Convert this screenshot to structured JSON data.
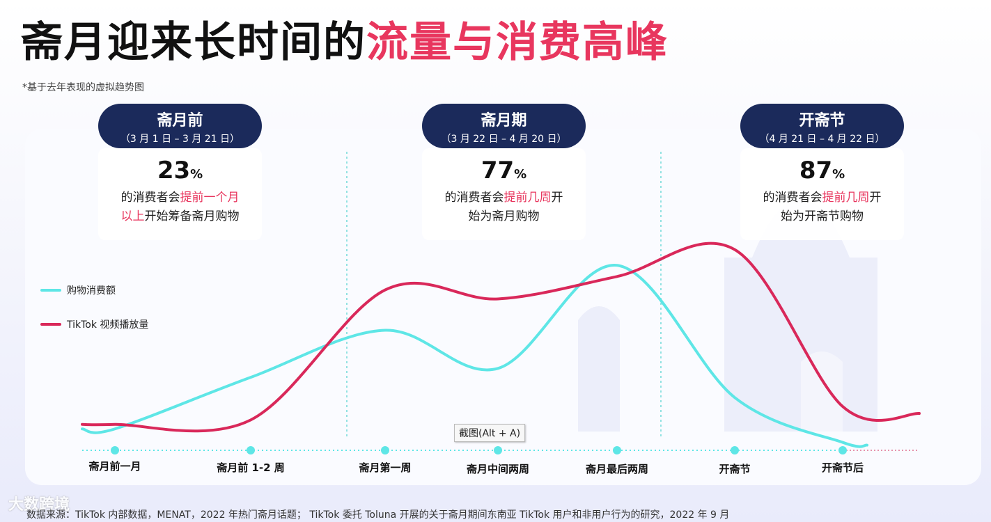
{
  "title": {
    "part1": "斋月迎来长时间的",
    "part2": "流量与消费高峰"
  },
  "note": "*基于去年表现的虚拟趋势图",
  "stages": [
    {
      "name": "斋月前",
      "dates": "（3 月 1 日 – 3 月 21 日）",
      "percent": "23",
      "percent_sign": "%",
      "desc_pre": "的消费者会",
      "desc_hl": "提前一个月\n以上",
      "desc_post": "开始筹备斋月购物"
    },
    {
      "name": "斋月期",
      "dates": "（3 月 22 日 – 4 月 20 日）",
      "percent": "77",
      "percent_sign": "%",
      "desc_pre": "的消费者会",
      "desc_hl": "提前几周",
      "desc_post": "开\n始为斋月购物"
    },
    {
      "name": "开斋节",
      "dates": "（4 月 21 日 – 4 月 22 日）",
      "percent": "87",
      "percent_sign": "%",
      "desc_pre": "的消费者会",
      "desc_hl": "提前几周",
      "desc_post": "开\n始为开斋节购物"
    }
  ],
  "tooltip": "截图(Alt + A)",
  "source": "数据来源：TikTok 内部数据，MENAT，2022 年热门斋月话题； TikTok 委托 Toluna 开展的关于斋月期间东南亚 TikTok 用户和非用户行为的研究，2022 年 9 月",
  "watermark": "大数跨境",
  "colors": {
    "cyan": "#5ee6e6",
    "red": "#d9285a",
    "navy": "#1b2a5b",
    "pink": "#e8365e"
  },
  "chart_data": {
    "type": "line",
    "categories": [
      "斋月前一月",
      "斋月前 1-2 周",
      "斋月第一周",
      "斋月中间两周",
      "斋月最后两周",
      "开斋节",
      "开斋节后"
    ],
    "series": [
      {
        "name": "购物消费额",
        "color": "#5ee6e6",
        "values": [
          8,
          31,
          52,
          35,
          81,
          22,
          2
        ]
      },
      {
        "name": "TikTok 视频播放量",
        "color": "#d9285a",
        "values": [
          10,
          12,
          70,
          66,
          76,
          88,
          18
        ]
      }
    ],
    "ylim": [
      0,
      100
    ],
    "grid": false,
    "legend": "left"
  }
}
